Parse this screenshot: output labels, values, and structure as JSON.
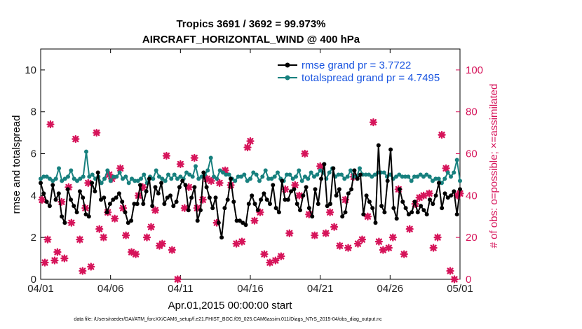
{
  "chart_data": {
    "type": "line",
    "title": "Tropics 3691 / 3692 = 99.973%",
    "subtitle": "AIRCRAFT_HORIZONTAL_WIND @ 400 hPa",
    "xlabel": "Apr.01,2015 00:00:00 start",
    "ylabel": "rmse and totalspread",
    "y2label": "# of obs: o=possible; ×=assimilated",
    "footer": "data file: /Users/raeder/DAI/ATM_forcXX/CAM6_setup/f.e21.FHIST_BGC.f09_025.CAM6assim.011/Diags_NTrS_2015-04/obs_diag_output.nc",
    "xlim": [
      0,
      30
    ],
    "ylim": [
      0,
      11
    ],
    "y2lim": [
      0,
      110
    ],
    "x_ticks": [
      0,
      5,
      10,
      15,
      20,
      25,
      30
    ],
    "x_tick_labels": [
      "04/01",
      "04/06",
      "04/11",
      "04/16",
      "04/21",
      "04/26",
      "05/01"
    ],
    "y_ticks": [
      0,
      2,
      4,
      6,
      8,
      10
    ],
    "y_tick_labels": [
      "0",
      "2",
      "4",
      "6",
      "8",
      "10"
    ],
    "y2_ticks": [
      0,
      20,
      40,
      60,
      80,
      100
    ],
    "y2_tick_labels": [
      "0",
      "20",
      "40",
      "60",
      "80",
      "100"
    ],
    "legend_position": "top-right",
    "series": [
      {
        "name": "rmse grand pr = 3.7722",
        "color": "#000000",
        "axis": "left",
        "values": [
          4.6,
          4.1,
          3.7,
          3.5,
          4.5,
          3.8,
          4.1,
          3.0,
          2.7,
          4.3,
          3.8,
          3.5,
          3.2,
          4.2,
          3.9,
          3.1,
          3.0,
          4.6,
          4.2,
          5.1,
          3.8,
          3.9,
          3.2,
          3.6,
          3.8,
          3.9,
          4.1,
          3.7,
          3.2,
          2.7,
          2.8,
          3.6,
          3.6,
          4.5,
          3.6,
          4.2,
          4.8,
          3.5,
          4.4,
          4.1,
          4.6,
          3.6,
          3.9,
          4.0,
          3.5,
          3.7,
          4.4,
          4.7,
          4.5,
          3.3,
          3.9,
          4.4,
          2.8,
          3.3,
          5.1,
          4.4,
          3.9,
          3.4,
          3.9,
          2.7,
          2.0,
          3.4,
          3.8,
          4.8,
          3.7,
          2.8,
          2.8,
          2.7,
          2.6,
          3.6,
          4.0,
          3.6,
          3.3,
          3.8,
          4.1,
          3.8,
          3.6,
          4.5,
          3.4,
          3.2,
          4.7,
          3.8,
          3.8,
          4.2,
          4.3,
          3.6,
          3.3,
          4.0,
          4.4,
          3.4,
          3.0,
          4.3,
          3.6,
          4.8,
          5.5,
          3.5,
          3.6,
          5.3,
          4.0,
          4.3,
          3.0,
          3.2,
          4.1,
          4.3,
          5.2,
          4.8,
          5.0,
          3.1,
          4.0,
          3.7,
          3.4,
          2.7,
          6.4,
          3.5,
          3.2,
          4.7,
          6.2,
          3.4,
          2.9,
          4.3,
          3.7,
          3.4,
          3.1,
          3.2,
          3.7,
          3.2,
          3.5,
          3.3,
          3.1,
          3.8,
          3.6,
          4.0,
          4.6,
          3.4,
          4.1,
          3.9,
          4.0,
          4.2,
          3.1,
          4.3
        ]
      },
      {
        "name": "totalspread grand pr = 4.7495",
        "color": "#17807e",
        "axis": "left",
        "values": [
          4.8,
          4.9,
          4.9,
          4.8,
          4.7,
          4.8,
          5.3,
          4.7,
          4.8,
          4.9,
          5.2,
          4.8,
          4.7,
          4.8,
          4.9,
          6.1,
          4.9,
          5.0,
          4.8,
          4.9,
          4.6,
          4.8,
          5.2,
          4.7,
          4.9,
          4.9,
          5.1,
          4.8,
          4.9,
          4.6,
          4.8,
          4.7,
          4.7,
          4.8,
          5.0,
          4.6,
          4.9,
          4.8,
          5.2,
          4.9,
          4.8,
          4.7,
          5.0,
          4.8,
          5.0,
          4.8,
          4.9,
          4.8,
          5.1,
          5.0,
          4.9,
          5.4,
          4.8,
          4.9,
          5.0,
          5.2,
          5.8,
          4.9,
          4.8,
          5.2,
          5.1,
          5.0,
          5.0,
          4.8,
          4.7,
          4.9,
          4.9,
          5.0,
          4.7,
          4.8,
          5.1,
          5.0,
          4.7,
          4.9,
          5.2,
          4.8,
          4.8,
          4.9,
          5.1,
          4.8,
          4.7,
          5.0,
          5.0,
          4.8,
          4.9,
          5.2,
          4.7,
          4.9,
          4.8,
          5.1,
          4.9,
          5.0,
          5.2,
          5.1,
          4.8,
          5.1,
          5.3,
          4.9,
          5.0,
          5.0,
          4.8,
          4.9,
          5.2,
          4.9,
          4.9,
          5.3,
          5.0,
          5.0,
          5.0,
          4.9,
          5.0,
          5.1,
          5.1,
          5.1,
          4.9,
          5.0,
          4.8,
          4.9,
          5.0,
          4.9,
          4.9,
          4.9,
          4.7,
          4.9,
          4.9,
          5.0,
          4.9,
          5.0,
          4.9,
          4.7,
          4.8,
          4.8,
          4.6,
          4.8,
          5.1,
          4.9,
          5.1,
          5.7,
          4.7
        ]
      }
    ],
    "obs_points": {
      "axis": "right",
      "color": "#d6145a",
      "x": [
        0.1,
        0.3,
        0.5,
        0.7,
        1.0,
        1.2,
        1.5,
        1.7,
        2.0,
        2.2,
        2.5,
        2.8,
        3.0,
        3.2,
        3.4,
        3.6,
        4.0,
        4.2,
        4.5,
        4.8,
        4.9,
        5.1,
        5.3,
        5.7,
        5.9,
        6.1,
        6.5,
        6.8,
        7.0,
        7.3,
        7.6,
        7.9,
        8.2,
        8.5,
        8.7,
        9.0,
        9.4,
        9.8,
        10.0,
        10.3,
        10.6,
        11.0,
        11.2,
        11.6,
        11.9,
        12.2,
        12.6,
        12.8,
        13.2,
        13.6,
        14.0,
        14.4,
        14.8,
        15.0,
        15.3,
        15.7,
        16.0,
        16.4,
        16.8,
        17.2,
        17.5,
        17.8,
        18.2,
        18.5,
        18.9,
        19.2,
        19.6,
        20.0,
        20.4,
        20.7,
        21.0,
        21.4,
        21.8,
        22.0,
        22.4,
        22.7,
        23.0,
        23.4,
        23.8,
        24.2,
        24.5,
        24.9,
        25.2,
        25.6,
        26.0,
        26.4,
        26.8,
        27.1,
        27.4,
        27.8,
        28.1,
        28.4,
        28.7,
        29.0,
        29.3,
        29.6,
        29.8,
        30.0
      ],
      "y": [
        38,
        8,
        19,
        74,
        9,
        13,
        37,
        10,
        44,
        27,
        67,
        19,
        4,
        34,
        46,
        6,
        70,
        24,
        20,
        32,
        50,
        48,
        29,
        53,
        34,
        21,
        13,
        12,
        40,
        44,
        20,
        25,
        33,
        16,
        17,
        59,
        14,
        0,
        55,
        34,
        44,
        58,
        34,
        38,
        48,
        47,
        27,
        46,
        52,
        45,
        17,
        18,
        63,
        66,
        28,
        32,
        12,
        8,
        9,
        11,
        43,
        22,
        45,
        40,
        60,
        31,
        21,
        54,
        22,
        32,
        25,
        16,
        38,
        15,
        49,
        17,
        19,
        30,
        75,
        18,
        14,
        15,
        20,
        43,
        12,
        24,
        36,
        39,
        40,
        41,
        15,
        20,
        69,
        53,
        4,
        0,
        40,
        41
      ]
    }
  }
}
